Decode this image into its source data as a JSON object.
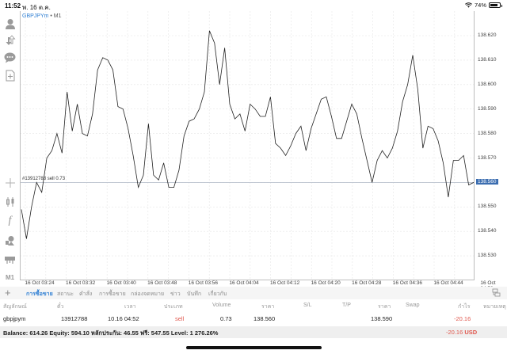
{
  "status_bar": {
    "time": "11:52",
    "date": "พ. 16 ต.ค.",
    "battery": "74%"
  },
  "sidebar": {
    "items": [
      {
        "name": "account-icon",
        "glyph": "👤"
      },
      {
        "name": "trade-arrows-icon",
        "glyph": "⇅"
      },
      {
        "name": "chat-icon",
        "glyph": "💬"
      },
      {
        "name": "new-document-icon",
        "glyph": "+"
      },
      {
        "name": "crosshair-icon",
        "glyph": "+"
      },
      {
        "name": "chart-type-icon",
        "glyph": "▯"
      },
      {
        "name": "indicator-icon",
        "glyph": "f"
      },
      {
        "name": "objects-icon",
        "glyph": "◆"
      },
      {
        "name": "layouts-icon",
        "glyph": "▭"
      },
      {
        "name": "timeframe-label",
        "glyph": "M1"
      }
    ]
  },
  "chart": {
    "symbol": "GBPJPYm",
    "separator": " • ",
    "timeframe": "M1",
    "order_line_label": "#13912788 sell 0.73",
    "current_price": "138.560"
  },
  "chart_data": {
    "type": "line",
    "title": "GBPJPYm • M1",
    "xlabel": "",
    "ylabel": "",
    "ylim": [
      138.525,
      138.625
    ],
    "grid": true,
    "y_ticks": [
      "138.620",
      "138.610",
      "138.600",
      "138.590",
      "138.580",
      "138.570",
      "138.560",
      "138.550",
      "138.540",
      "138.530"
    ],
    "x_ticks": [
      "16 Oct 03:24",
      "16 Oct 03:32",
      "16 Oct 03:40",
      "16 Oct 03:48",
      "16 Oct 03:56",
      "16 Oct 04:04",
      "16 Oct 04:12",
      "16 Oct 04:20",
      "16 Oct 04:28",
      "16 Oct 04:36",
      "16 Oct 04:44",
      "16 Oct 04:52"
    ],
    "horizontal_line": {
      "label": "#13912788 sell 0.73",
      "value": 138.56
    },
    "series": [
      {
        "name": "GBPJPYm close",
        "values": [
          138.549,
          138.537,
          138.55,
          138.56,
          138.556,
          138.57,
          138.573,
          138.58,
          138.572,
          138.597,
          138.581,
          138.592,
          138.58,
          138.579,
          138.588,
          138.606,
          138.611,
          138.61,
          138.606,
          138.591,
          138.59,
          138.582,
          138.571,
          138.558,
          138.563,
          138.584,
          138.563,
          138.561,
          138.568,
          138.558,
          138.558,
          138.565,
          138.579,
          138.585,
          138.586,
          138.59,
          138.597,
          138.622,
          138.617,
          138.6,
          138.615,
          138.592,
          138.586,
          138.588,
          138.581,
          138.592,
          138.59,
          138.587,
          138.587,
          138.595,
          138.576,
          138.574,
          138.571,
          138.575,
          138.58,
          138.583,
          138.573,
          138.582,
          138.588,
          138.594,
          138.595,
          138.587,
          138.578,
          138.578,
          138.585,
          138.592,
          138.588,
          138.578,
          138.569,
          138.56,
          138.569,
          138.573,
          138.57,
          138.574,
          138.581,
          138.593,
          138.6,
          138.612,
          138.598,
          138.574,
          138.583,
          138.582,
          138.577,
          138.568,
          138.554,
          138.569,
          138.569,
          138.571,
          138.559,
          138.56
        ]
      }
    ]
  },
  "tabs": {
    "items": [
      {
        "label": "การซื้อขาย",
        "active": true
      },
      {
        "label": "สถานะ",
        "active": false
      },
      {
        "label": "คำสั่ง",
        "active": false
      },
      {
        "label": "การซื้อขาย",
        "active": false
      },
      {
        "label": "กล่องจดหมาย",
        "active": false
      },
      {
        "label": "ข่าว",
        "active": false
      },
      {
        "label": "บันทึก",
        "active": false
      },
      {
        "label": "เกี่ยวกับ",
        "active": false
      }
    ]
  },
  "table": {
    "headers": [
      "สัญลักษณ์",
      "ตั๋ว",
      "เวลา",
      "ประเภท",
      "Volume",
      "ราคา",
      "S/L",
      "T/P",
      "ราคา",
      "Swap",
      "กำไร",
      "หมายเหตุ"
    ],
    "rows": [
      {
        "symbol": "gbpjpym",
        "ticket": "13912788",
        "time": "10.16 04:52",
        "type": "sell",
        "volume": "0.73",
        "price": "138.560",
        "sl": "",
        "tp": "",
        "current_price": "138.590",
        "swap": "",
        "profit": "-20.16",
        "comment": ""
      }
    ]
  },
  "balance": {
    "text": "Balance: 614.26 Equity: 594.10 หลักประกัน: 46.55 ฟรี: 547.55 Level: 1 276.26%",
    "total_profit": "-20.16",
    "currency": "USD"
  },
  "colors": {
    "accent": "#2f7fd3",
    "sell": "#e0584e",
    "current_price_bg": "#3b6db0"
  }
}
